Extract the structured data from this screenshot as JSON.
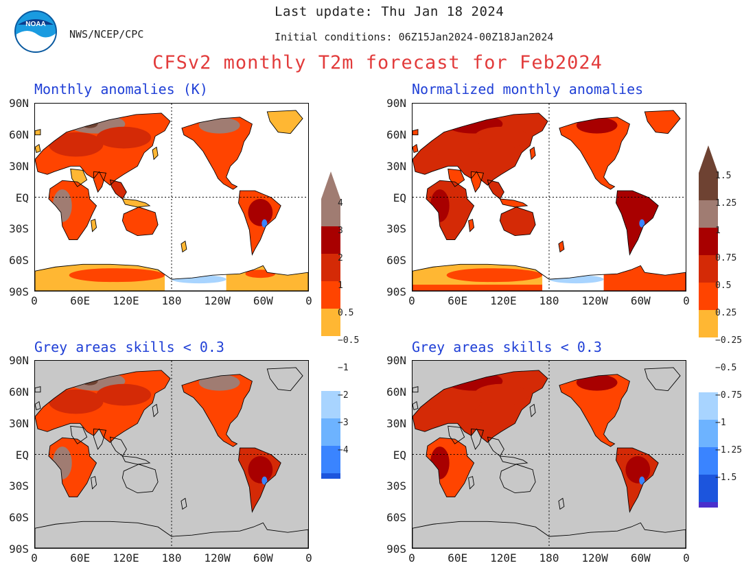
{
  "header": {
    "org": "NWS/NCEP/CPC",
    "last_update": "Last update: Thu Jan 18 2024",
    "initial_conditions": "Initial conditions: 06Z15Jan2024-00Z18Jan2024",
    "title": "CFSv2 monthly T2m forecast for Feb2024",
    "logo_text": "NOAA"
  },
  "panels": [
    {
      "title": "Monthly anomalies (K)",
      "masked": false
    },
    {
      "title": "Normalized monthly anomalies",
      "masked": false
    },
    {
      "title": "Grey areas skills < 0.3",
      "masked": true
    },
    {
      "title": "Grey areas skills < 0.3",
      "masked": true
    }
  ],
  "axes": {
    "lat_labels": [
      "90N",
      "60N",
      "30N",
      "EQ",
      "30S",
      "60S",
      "90S"
    ],
    "lon_labels": [
      "0",
      "60E",
      "120E",
      "180",
      "120W",
      "60W",
      "0"
    ]
  },
  "colorbars": {
    "left": {
      "labels": [
        "4",
        "3",
        "2",
        "1",
        "0.5",
        "−0.5",
        "−1",
        "−2",
        "−3",
        "−4"
      ]
    },
    "right": {
      "labels": [
        "1.5",
        "1.25",
        "1",
        "0.75",
        "0.5",
        "0.25",
        "−0.25",
        "−0.5",
        "−0.75",
        "−1",
        "−1.25",
        "−1.5"
      ]
    }
  },
  "colors": {
    "title_red": "#e23b3b",
    "panel_title_blue": "#1f3fd6",
    "mask_grey": "#c8c8c8",
    "warm": [
      "#ffb733",
      "#ff4400",
      "#d42a06",
      "#a80000",
      "#a07c72",
      "#6e4232"
    ],
    "cool": [
      "#a8d4ff",
      "#6db3ff",
      "#3a84ff",
      "#1c55dd",
      "#4a2fcc",
      "#2a0aa0"
    ]
  }
}
